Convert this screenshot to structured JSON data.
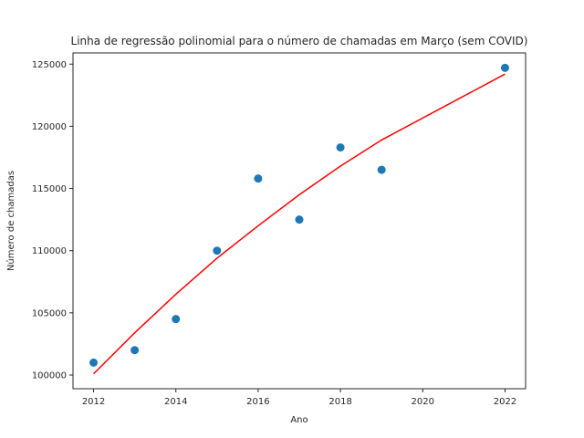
{
  "chart_data": {
    "type": "scatter",
    "title": "Linha de regressão polinomial para o número de chamadas em Março (sem COVID)",
    "xlabel": "Ano",
    "ylabel": "Número de chamadas",
    "xlim": [
      2011.5,
      2022.5
    ],
    "ylim": [
      98900,
      125900
    ],
    "xticks": [
      2012,
      2014,
      2016,
      2018,
      2020,
      2022
    ],
    "yticks": [
      100000,
      105000,
      110000,
      115000,
      120000,
      125000
    ],
    "grid": false,
    "series": [
      {
        "kind": "scatter",
        "color": "#1f77b4",
        "x": [
          2012,
          2013,
          2014,
          2015,
          2016,
          2017,
          2018,
          2019,
          2022
        ],
        "y": [
          101000,
          102000,
          104500,
          110000,
          115800,
          112500,
          118300,
          116500,
          124700
        ]
      },
      {
        "kind": "line",
        "color": "#ff0000",
        "x": [
          2012,
          2013,
          2014,
          2015,
          2016,
          2017,
          2018,
          2019,
          2022
        ],
        "y": [
          100100,
          103400,
          106500,
          109400,
          112000,
          114500,
          116800,
          118900,
          124200
        ]
      }
    ]
  }
}
